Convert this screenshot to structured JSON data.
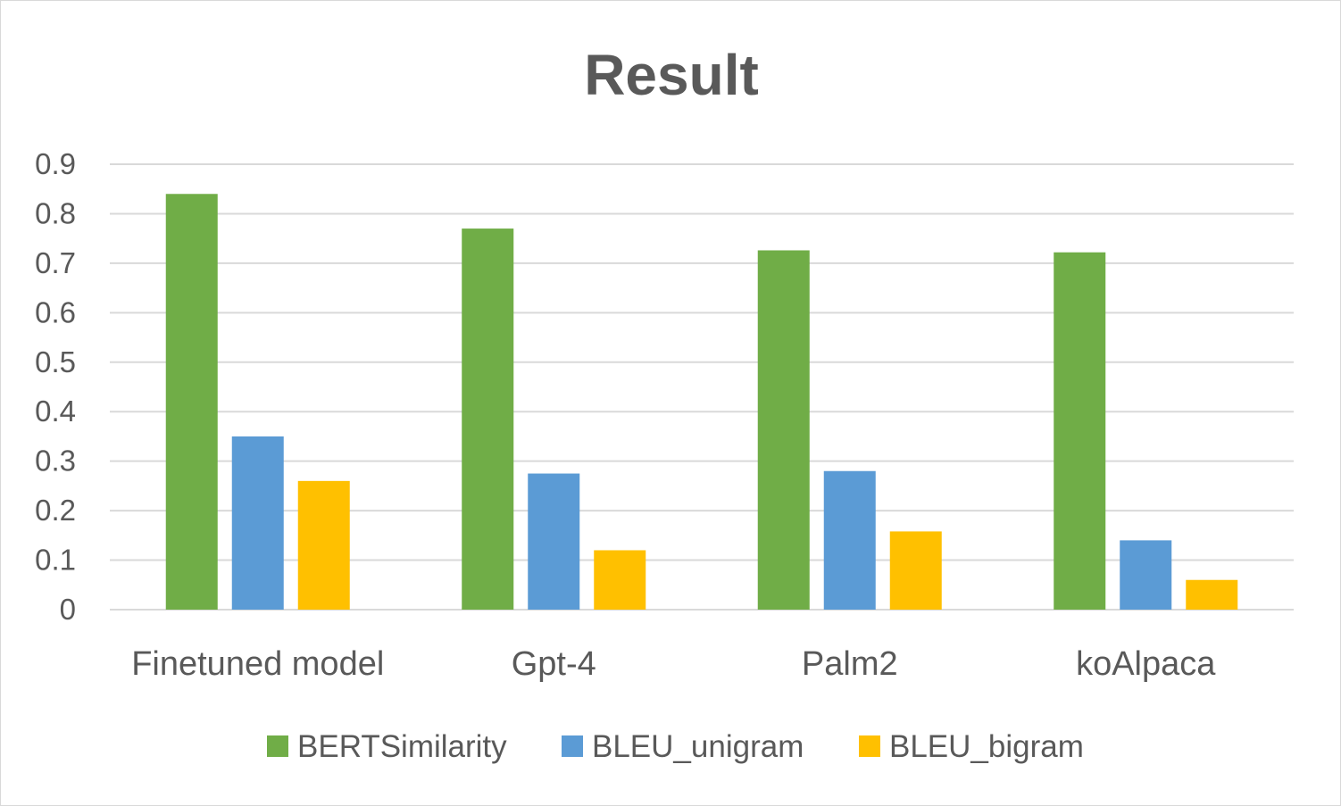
{
  "chart_data": {
    "type": "bar",
    "title": "Result",
    "categories": [
      "Finetuned model",
      "Gpt-4",
      "Palm2",
      "koAlpaca"
    ],
    "series": [
      {
        "name": "BERTSimilarity",
        "color": "#70ad47",
        "values": [
          0.84,
          0.77,
          0.726,
          0.722
        ]
      },
      {
        "name": "BLEU_unigram",
        "color": "#5b9bd5",
        "values": [
          0.35,
          0.275,
          0.28,
          0.14
        ]
      },
      {
        "name": "BLEU_bigram",
        "color": "#ffc000",
        "values": [
          0.26,
          0.12,
          0.158,
          0.06
        ]
      }
    ],
    "ylim": [
      0,
      0.9
    ],
    "yticks": [
      "0",
      "0.1",
      "0.2",
      "0.3",
      "0.4",
      "0.5",
      "0.6",
      "0.7",
      "0.8",
      "0.9"
    ],
    "grid": true,
    "legend": "bottom"
  }
}
